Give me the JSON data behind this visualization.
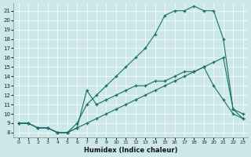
{
  "xlabel": "Humidex (Indice chaleur)",
  "bg_color": "#cde8e8",
  "line_color": "#1a6e6a",
  "xlim": [
    -0.5,
    23.5
  ],
  "ylim": [
    7.5,
    21.8
  ],
  "xticks": [
    0,
    1,
    2,
    3,
    4,
    5,
    6,
    7,
    8,
    9,
    10,
    11,
    12,
    13,
    14,
    15,
    16,
    17,
    18,
    19,
    20,
    21,
    22,
    23
  ],
  "yticks": [
    8,
    9,
    10,
    11,
    12,
    13,
    14,
    15,
    16,
    17,
    18,
    19,
    20,
    21
  ],
  "line1_x": [
    0,
    1,
    2,
    3,
    4,
    5,
    6,
    7,
    8,
    9,
    10,
    11,
    12,
    13,
    14,
    15,
    16,
    17,
    18,
    19,
    20,
    21,
    22,
    23
  ],
  "line1_y": [
    9,
    9,
    8.5,
    8.5,
    8.0,
    8.0,
    8.5,
    9.0,
    9.5,
    10.0,
    10.5,
    11.0,
    11.5,
    12.0,
    12.5,
    13.0,
    13.5,
    14.0,
    14.5,
    15.0,
    15.5,
    16.0,
    10.5,
    10.0
  ],
  "line2_x": [
    0,
    1,
    2,
    3,
    4,
    5,
    6,
    7,
    8,
    9,
    10,
    11,
    12,
    13,
    14,
    15,
    16,
    17,
    18,
    19,
    20,
    21,
    22,
    23
  ],
  "line2_y": [
    9,
    9,
    8.5,
    8.5,
    8.0,
    8.0,
    9.0,
    11.0,
    12.0,
    13.0,
    14.0,
    15.0,
    16.0,
    17.0,
    18.5,
    20.5,
    21.0,
    21.0,
    21.5,
    21.0,
    21.0,
    18.0,
    10.5,
    9.5
  ],
  "line3_x": [
    0,
    1,
    2,
    3,
    4,
    5,
    6,
    7,
    8,
    9,
    10,
    11,
    12,
    13,
    14,
    15,
    16,
    17,
    18,
    19,
    20,
    21,
    22,
    23
  ],
  "line3_y": [
    9,
    9,
    8.5,
    8.5,
    8.0,
    8.0,
    8.5,
    12.5,
    11.0,
    11.5,
    12.0,
    12.5,
    13.0,
    13.0,
    13.5,
    13.5,
    14.0,
    14.5,
    14.5,
    15.0,
    13.0,
    11.5,
    10.0,
    9.5
  ]
}
